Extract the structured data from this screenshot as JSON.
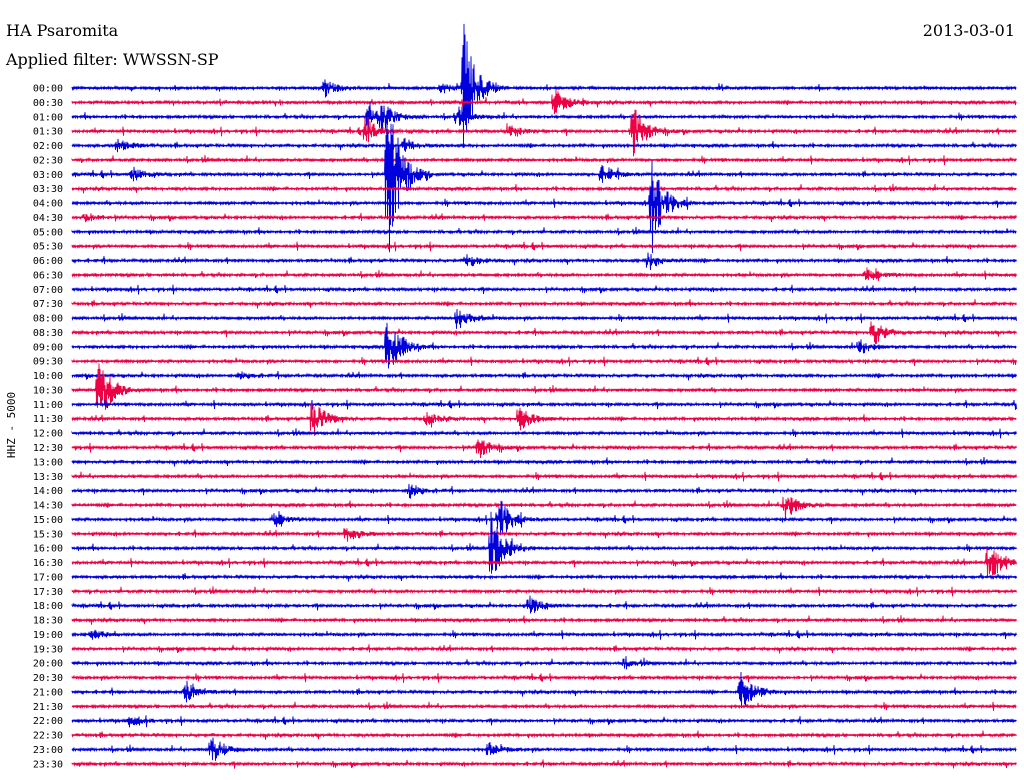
{
  "header": {
    "station": "HA Psaromita",
    "filter": "Applied filter: WWSSN-SP",
    "date": "2013-03-01"
  },
  "chart_data": {
    "type": "line",
    "subtype": "helicorder",
    "ylabel": "HHZ - 5000",
    "colors": {
      "even": "#0000dd",
      "odd": "#ee0044"
    },
    "rows": [
      "00:00",
      "00:30",
      "01:00",
      "01:30",
      "02:00",
      "02:30",
      "03:00",
      "03:30",
      "04:00",
      "04:30",
      "05:00",
      "05:30",
      "06:00",
      "06:30",
      "07:00",
      "07:30",
      "08:00",
      "08:30",
      "09:00",
      "09:30",
      "10:00",
      "10:30",
      "11:00",
      "11:30",
      "12:00",
      "12:30",
      "13:00",
      "13:30",
      "14:00",
      "14:30",
      "15:00",
      "15:30",
      "16:00",
      "16:30",
      "17:00",
      "17:30",
      "18:00",
      "18:30",
      "19:00",
      "19:30",
      "20:00",
      "20:30",
      "21:00",
      "21:30",
      "22:00",
      "22:30",
      "23:00",
      "23:30"
    ],
    "events": [
      {
        "row": 0,
        "minute": 8.0,
        "amp": 10
      },
      {
        "row": 0,
        "minute": 11.7,
        "amp": 6
      },
      {
        "row": 0,
        "minute": 12.4,
        "amp": 70
      },
      {
        "row": 1,
        "minute": 15.3,
        "amp": 16
      },
      {
        "row": 2,
        "minute": 9.4,
        "amp": 14
      },
      {
        "row": 2,
        "minute": 9.8,
        "amp": 14
      },
      {
        "row": 2,
        "minute": 12.2,
        "amp": 10
      },
      {
        "row": 3,
        "minute": 9.3,
        "amp": 16
      },
      {
        "row": 3,
        "minute": 13.8,
        "amp": 8
      },
      {
        "row": 3,
        "minute": 17.8,
        "amp": 30
      },
      {
        "row": 4,
        "minute": 1.4,
        "amp": 8
      },
      {
        "row": 4,
        "minute": 10.5,
        "amp": 8
      },
      {
        "row": 6,
        "minute": 1.9,
        "amp": 8
      },
      {
        "row": 6,
        "minute": 16.8,
        "amp": 12
      },
      {
        "row": 6,
        "minute": 10.0,
        "amp": 100
      },
      {
        "row": 8,
        "minute": 18.4,
        "amp": 50
      },
      {
        "row": 9,
        "minute": 0.4,
        "amp": 5
      },
      {
        "row": 12,
        "minute": 12.5,
        "amp": 8
      },
      {
        "row": 12,
        "minute": 18.3,
        "amp": 10
      },
      {
        "row": 13,
        "minute": 25.2,
        "amp": 8
      },
      {
        "row": 16,
        "minute": 12.2,
        "amp": 14
      },
      {
        "row": 17,
        "minute": 25.4,
        "amp": 16
      },
      {
        "row": 18,
        "minute": 10.0,
        "amp": 40
      },
      {
        "row": 18,
        "minute": 25.0,
        "amp": 8
      },
      {
        "row": 20,
        "minute": 5.3,
        "amp": 4
      },
      {
        "row": 21,
        "minute": 0.8,
        "amp": 40
      },
      {
        "row": 22,
        "minute": 30.0,
        "amp": 8
      },
      {
        "row": 23,
        "minute": 7.6,
        "amp": 24
      },
      {
        "row": 23,
        "minute": 11.2,
        "amp": 8
      },
      {
        "row": 23,
        "minute": 14.2,
        "amp": 14
      },
      {
        "row": 25,
        "minute": 12.9,
        "amp": 12
      },
      {
        "row": 28,
        "minute": 10.7,
        "amp": 8
      },
      {
        "row": 29,
        "minute": 22.6,
        "amp": 18
      },
      {
        "row": 30,
        "minute": 13.5,
        "amp": 28
      },
      {
        "row": 30,
        "minute": 6.4,
        "amp": 8
      },
      {
        "row": 31,
        "minute": 8.7,
        "amp": 10
      },
      {
        "row": 32,
        "minute": 13.3,
        "amp": 40
      },
      {
        "row": 33,
        "minute": 29.1,
        "amp": 24
      },
      {
        "row": 36,
        "minute": 14.5,
        "amp": 10
      },
      {
        "row": 38,
        "minute": 0.6,
        "amp": 6
      },
      {
        "row": 40,
        "minute": 17.5,
        "amp": 5
      },
      {
        "row": 42,
        "minute": 3.6,
        "amp": 10
      },
      {
        "row": 42,
        "minute": 21.2,
        "amp": 28
      },
      {
        "row": 44,
        "minute": 1.8,
        "amp": 6
      },
      {
        "row": 46,
        "minute": 4.4,
        "amp": 16
      },
      {
        "row": 46,
        "minute": 13.2,
        "amp": 8
      }
    ]
  }
}
